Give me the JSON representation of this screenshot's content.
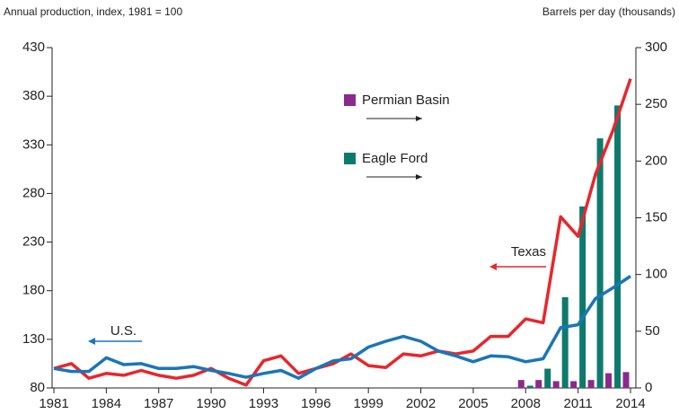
{
  "chart_data": {
    "type": "line",
    "y_label": "Annual production, index, 1981 = 100",
    "y2_label": "Barrels per day (thousands)",
    "x": [
      1981,
      1982,
      1983,
      1984,
      1985,
      1986,
      1987,
      1988,
      1989,
      1990,
      1991,
      1992,
      1993,
      1994,
      1995,
      1996,
      1997,
      1998,
      1999,
      2000,
      2001,
      2002,
      2003,
      2004,
      2005,
      2006,
      2007,
      2008,
      2009,
      2010,
      2011,
      2012,
      2013,
      2014
    ],
    "xlim": [
      1981,
      2014
    ],
    "xticks": [
      1981,
      1984,
      1987,
      1990,
      1993,
      1996,
      1999,
      2002,
      2005,
      2008,
      2011,
      2014
    ],
    "ylim": [
      80,
      430
    ],
    "yticks": [
      80,
      130,
      180,
      230,
      280,
      330,
      380,
      430
    ],
    "y2lim": [
      0,
      300
    ],
    "y2ticks": [
      0,
      50,
      100,
      150,
      200,
      250,
      300
    ],
    "series": [
      {
        "name": "Texas",
        "type": "line",
        "color": "#e8262b",
        "values": [
          100,
          105,
          90,
          95,
          93,
          98,
          93,
          90,
          93,
          100,
          90,
          83,
          108,
          113,
          95,
          100,
          105,
          115,
          103,
          101,
          115,
          113,
          118,
          115,
          118,
          133,
          133,
          151,
          147,
          256,
          236,
          300,
          345,
          398
        ]
      },
      {
        "name": "U.S.",
        "type": "line",
        "color": "#1a75bb",
        "values": [
          100,
          97,
          97,
          111,
          104,
          105,
          100,
          100,
          102,
          98,
          95,
          91,
          95,
          98,
          90,
          100,
          108,
          110,
          122,
          128,
          133,
          128,
          118,
          113,
          107,
          113,
          112,
          107,
          110,
          142,
          145,
          172,
          183,
          195
        ]
      },
      {
        "name": "Permian Basin",
        "type": "bar",
        "axis": "y2",
        "color": "#8b2a8e",
        "legend": true,
        "values": [
          null,
          null,
          null,
          null,
          null,
          null,
          null,
          null,
          null,
          null,
          null,
          null,
          null,
          null,
          null,
          null,
          null,
          null,
          null,
          null,
          null,
          null,
          null,
          null,
          null,
          null,
          null,
          7,
          7,
          6,
          6,
          7,
          13,
          14
        ]
      },
      {
        "name": "Eagle Ford",
        "type": "bar",
        "axis": "y2",
        "color": "#0e7a6e",
        "legend": true,
        "values": [
          null,
          null,
          null,
          null,
          null,
          null,
          null,
          null,
          null,
          null,
          null,
          null,
          null,
          null,
          null,
          null,
          null,
          null,
          null,
          null,
          null,
          null,
          null,
          null,
          null,
          null,
          null,
          2,
          17,
          80,
          160,
          220,
          249,
          null
        ]
      }
    ]
  }
}
